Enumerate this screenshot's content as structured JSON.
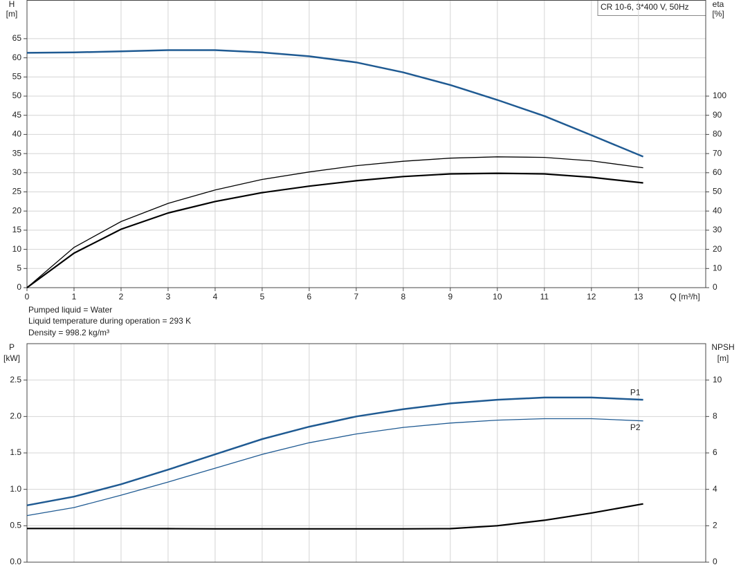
{
  "info": [
    "Pumped liquid = Water",
    "Liquid temperature during operation = 293 K",
    "Density = 998.2 kg/m³"
  ],
  "chart_data": [
    {
      "type": "line",
      "title": "CR 10-6, 3*400 V, 50Hz",
      "ylabel": "H",
      "yunit": "[m]",
      "y2label": "eta",
      "y2unit": "[%]",
      "xlabel": "Q [m³/h]",
      "x": [
        0,
        1,
        2,
        3,
        4,
        5,
        6,
        7,
        8,
        9,
        10,
        11,
        12,
        13.1
      ],
      "xlim": [
        0,
        14.43
      ],
      "xticks": [
        0,
        1,
        2,
        3,
        4,
        5,
        6,
        7,
        8,
        9,
        10,
        11,
        12,
        13
      ],
      "ylim": [
        0,
        75
      ],
      "yticks": [
        0,
        5,
        10,
        15,
        20,
        25,
        30,
        35,
        40,
        45,
        50,
        55,
        60,
        65
      ],
      "y2lim": [
        0,
        150
      ],
      "y2ticks": [
        0,
        10,
        20,
        30,
        40,
        50,
        60,
        70,
        80,
        90,
        100
      ],
      "grid": true,
      "series": [
        {
          "color": "#1f5a92",
          "values": [
            61.3,
            61.4,
            61.7,
            62,
            62,
            61.4,
            60.4,
            58.8,
            56.2,
            52.9,
            49,
            44.8,
            39.8,
            34.2
          ]
        },
        {
          "color": "#000000",
          "axis": "y2",
          "values": [
            0,
            21,
            34.5,
            44,
            51,
            56.5,
            60.4,
            63.7,
            66,
            67.6,
            68.3,
            68,
            66.2,
            62.6
          ]
        },
        {
          "color": "#000000",
          "axis": "y2",
          "values": [
            0,
            18,
            30.5,
            39,
            45,
            49.6,
            53,
            55.8,
            58,
            59.4,
            59.7,
            59.4,
            57.6,
            54.7
          ]
        }
      ]
    },
    {
      "type": "line",
      "ylabel": "P",
      "yunit": "[kW]",
      "y2label": "NPSH",
      "y2unit": "[m]",
      "x": [
        0,
        1,
        2,
        3,
        4,
        5,
        6,
        7,
        8,
        9,
        10,
        11,
        12,
        13.1
      ],
      "xlim": [
        0,
        14.43
      ],
      "ylim": [
        0,
        3.0
      ],
      "yticks": [
        {
          "value": 0,
          "label": "0.0"
        },
        0.5,
        {
          "value": 1,
          "label": "1.0"
        },
        1.5,
        {
          "value": 2,
          "label": "2.0"
        },
        2.5
      ],
      "y2lim": [
        0,
        12
      ],
      "y2ticks": [
        0,
        2,
        4,
        6,
        8,
        10
      ],
      "grid": true,
      "series": [
        {
          "name": "P1",
          "color": "#1f5a92",
          "values": [
            0.78,
            0.9,
            1.07,
            1.27,
            1.48,
            1.69,
            1.86,
            2.0,
            2.1,
            2.18,
            2.23,
            2.26,
            2.26,
            2.23
          ]
        },
        {
          "name": "P2",
          "color": "#1f5a92",
          "values": [
            0.64,
            0.75,
            0.92,
            1.1,
            1.29,
            1.48,
            1.64,
            1.76,
            1.85,
            1.91,
            1.95,
            1.97,
            1.97,
            1.94
          ]
        },
        {
          "color": "#000000",
          "axis": "y2",
          "values": [
            1.85,
            1.85,
            1.85,
            1.84,
            1.83,
            1.83,
            1.83,
            1.83,
            1.83,
            1.84,
            2.0,
            2.3,
            2.7,
            3.2
          ]
        }
      ]
    }
  ]
}
